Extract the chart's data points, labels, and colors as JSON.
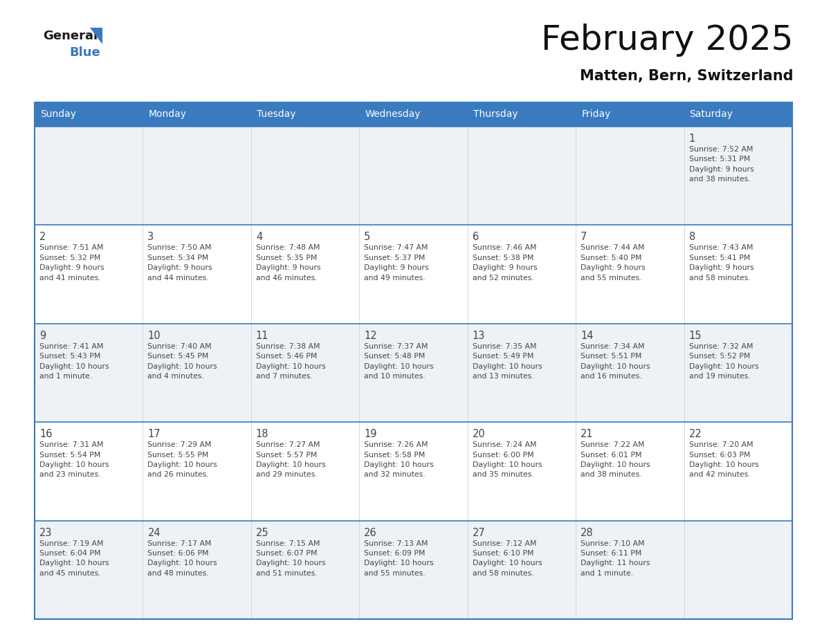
{
  "title": "February 2025",
  "subtitle": "Matten, Bern, Switzerland",
  "header_bg": "#3a7abf",
  "header_text": "#ffffff",
  "cell_bg_even": "#eef2f7",
  "cell_bg_odd": "#ffffff",
  "border_color": "#3a7abf",
  "text_color": "#444444",
  "days_of_week": [
    "Sunday",
    "Monday",
    "Tuesday",
    "Wednesday",
    "Thursday",
    "Friday",
    "Saturday"
  ],
  "weeks": [
    [
      {
        "day": "",
        "info": ""
      },
      {
        "day": "",
        "info": ""
      },
      {
        "day": "",
        "info": ""
      },
      {
        "day": "",
        "info": ""
      },
      {
        "day": "",
        "info": ""
      },
      {
        "day": "",
        "info": ""
      },
      {
        "day": "1",
        "info": "Sunrise: 7:52 AM\nSunset: 5:31 PM\nDaylight: 9 hours\nand 38 minutes."
      }
    ],
    [
      {
        "day": "2",
        "info": "Sunrise: 7:51 AM\nSunset: 5:32 PM\nDaylight: 9 hours\nand 41 minutes."
      },
      {
        "day": "3",
        "info": "Sunrise: 7:50 AM\nSunset: 5:34 PM\nDaylight: 9 hours\nand 44 minutes."
      },
      {
        "day": "4",
        "info": "Sunrise: 7:48 AM\nSunset: 5:35 PM\nDaylight: 9 hours\nand 46 minutes."
      },
      {
        "day": "5",
        "info": "Sunrise: 7:47 AM\nSunset: 5:37 PM\nDaylight: 9 hours\nand 49 minutes."
      },
      {
        "day": "6",
        "info": "Sunrise: 7:46 AM\nSunset: 5:38 PM\nDaylight: 9 hours\nand 52 minutes."
      },
      {
        "day": "7",
        "info": "Sunrise: 7:44 AM\nSunset: 5:40 PM\nDaylight: 9 hours\nand 55 minutes."
      },
      {
        "day": "8",
        "info": "Sunrise: 7:43 AM\nSunset: 5:41 PM\nDaylight: 9 hours\nand 58 minutes."
      }
    ],
    [
      {
        "day": "9",
        "info": "Sunrise: 7:41 AM\nSunset: 5:43 PM\nDaylight: 10 hours\nand 1 minute."
      },
      {
        "day": "10",
        "info": "Sunrise: 7:40 AM\nSunset: 5:45 PM\nDaylight: 10 hours\nand 4 minutes."
      },
      {
        "day": "11",
        "info": "Sunrise: 7:38 AM\nSunset: 5:46 PM\nDaylight: 10 hours\nand 7 minutes."
      },
      {
        "day": "12",
        "info": "Sunrise: 7:37 AM\nSunset: 5:48 PM\nDaylight: 10 hours\nand 10 minutes."
      },
      {
        "day": "13",
        "info": "Sunrise: 7:35 AM\nSunset: 5:49 PM\nDaylight: 10 hours\nand 13 minutes."
      },
      {
        "day": "14",
        "info": "Sunrise: 7:34 AM\nSunset: 5:51 PM\nDaylight: 10 hours\nand 16 minutes."
      },
      {
        "day": "15",
        "info": "Sunrise: 7:32 AM\nSunset: 5:52 PM\nDaylight: 10 hours\nand 19 minutes."
      }
    ],
    [
      {
        "day": "16",
        "info": "Sunrise: 7:31 AM\nSunset: 5:54 PM\nDaylight: 10 hours\nand 23 minutes."
      },
      {
        "day": "17",
        "info": "Sunrise: 7:29 AM\nSunset: 5:55 PM\nDaylight: 10 hours\nand 26 minutes."
      },
      {
        "day": "18",
        "info": "Sunrise: 7:27 AM\nSunset: 5:57 PM\nDaylight: 10 hours\nand 29 minutes."
      },
      {
        "day": "19",
        "info": "Sunrise: 7:26 AM\nSunset: 5:58 PM\nDaylight: 10 hours\nand 32 minutes."
      },
      {
        "day": "20",
        "info": "Sunrise: 7:24 AM\nSunset: 6:00 PM\nDaylight: 10 hours\nand 35 minutes."
      },
      {
        "day": "21",
        "info": "Sunrise: 7:22 AM\nSunset: 6:01 PM\nDaylight: 10 hours\nand 38 minutes."
      },
      {
        "day": "22",
        "info": "Sunrise: 7:20 AM\nSunset: 6:03 PM\nDaylight: 10 hours\nand 42 minutes."
      }
    ],
    [
      {
        "day": "23",
        "info": "Sunrise: 7:19 AM\nSunset: 6:04 PM\nDaylight: 10 hours\nand 45 minutes."
      },
      {
        "day": "24",
        "info": "Sunrise: 7:17 AM\nSunset: 6:06 PM\nDaylight: 10 hours\nand 48 minutes."
      },
      {
        "day": "25",
        "info": "Sunrise: 7:15 AM\nSunset: 6:07 PM\nDaylight: 10 hours\nand 51 minutes."
      },
      {
        "day": "26",
        "info": "Sunrise: 7:13 AM\nSunset: 6:09 PM\nDaylight: 10 hours\nand 55 minutes."
      },
      {
        "day": "27",
        "info": "Sunrise: 7:12 AM\nSunset: 6:10 PM\nDaylight: 10 hours\nand 58 minutes."
      },
      {
        "day": "28",
        "info": "Sunrise: 7:10 AM\nSunset: 6:11 PM\nDaylight: 11 hours\nand 1 minute."
      },
      {
        "day": "",
        "info": ""
      }
    ]
  ],
  "logo_general_color": "#1a1a1a",
  "logo_blue_color": "#3a7abf",
  "logo_triangle_color": "#3a7abf"
}
